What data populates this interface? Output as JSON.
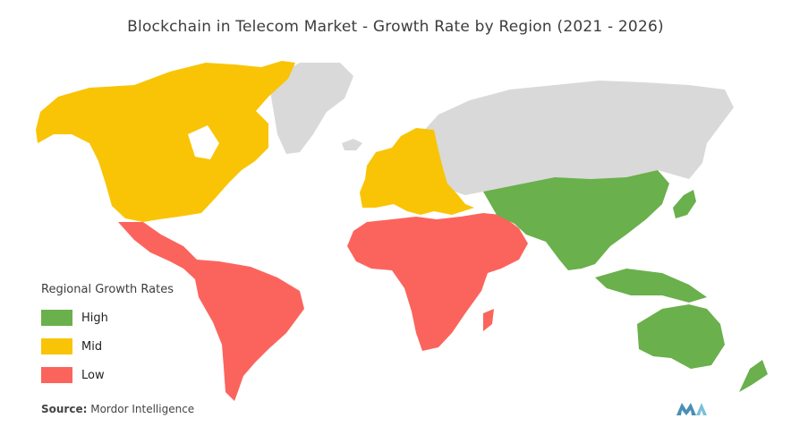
{
  "title": "Blockchain in Telecom Market - Growth Rate by Region (2021 - 2026)",
  "legend": {
    "title": "Regional Growth Rates",
    "items": [
      {
        "label": "High",
        "color": "#6ab04c"
      },
      {
        "label": "Mid",
        "color": "#f9c406"
      },
      {
        "label": "Low",
        "color": "#fb645c"
      }
    ]
  },
  "no_data_color": "#d9d9d9",
  "regions": {
    "north_america": "Mid",
    "europe": "Mid",
    "latin_america": "Low",
    "middle_east_africa": "Low",
    "asia_pacific": "High",
    "russia_greenland": "No data"
  },
  "source": {
    "label": "Source:",
    "text": "Mordor Intelligence"
  },
  "logo": {
    "icon": "mordor-intelligence-logo-icon"
  }
}
